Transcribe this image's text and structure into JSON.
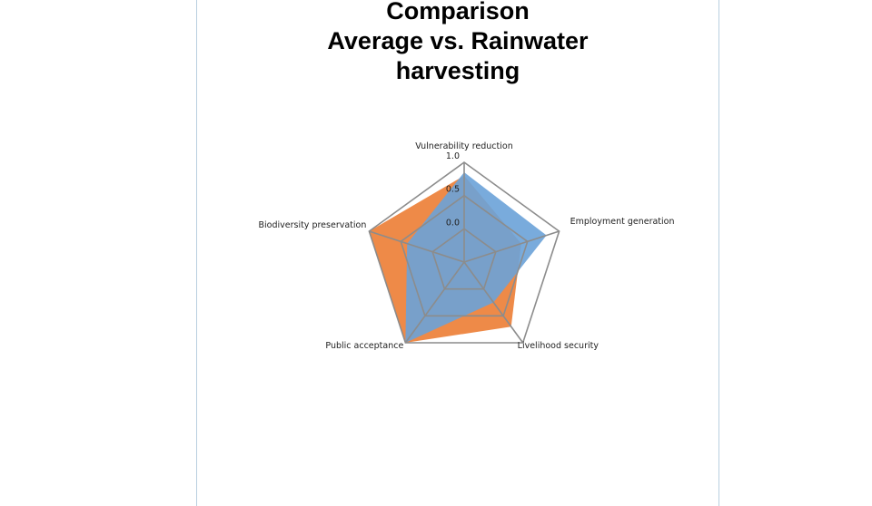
{
  "chart_data": {
    "type": "radar",
    "title_lines": [
      "Comparison",
      "Average vs. Rainwater",
      "harvesting"
    ],
    "categories": [
      "Vulnerability reduction",
      "Employment generation",
      "Livelihood security",
      "Public acceptance",
      "Biodiversity preservation"
    ],
    "radial_ticks": [
      "0.0",
      "0.5",
      "1.0"
    ],
    "rmin": -0.5,
    "rmax": 1.0,
    "series": [
      {
        "color": "#ee8a48",
        "values": [
          0.8,
          0.4,
          0.7,
          1.0,
          1.0
        ]
      },
      {
        "color": "#6aa2d8",
        "values": [
          0.85,
          0.8,
          0.25,
          1.0,
          0.4
        ]
      }
    ],
    "legend": "none"
  }
}
